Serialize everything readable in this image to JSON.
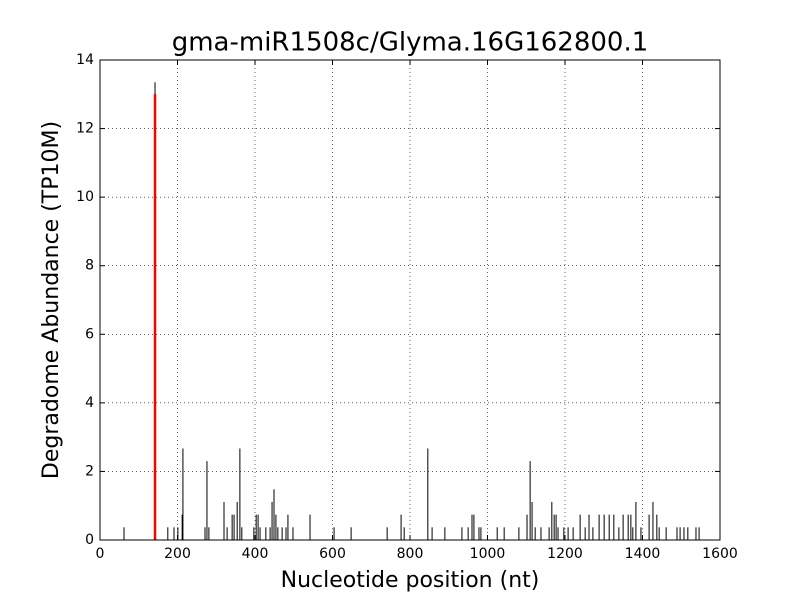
{
  "chart_data": {
    "type": "stem",
    "title": "gma-miR1508c/Glyma.16G162800.1",
    "x_label": "Nucleotide position (nt)",
    "y_label": "Degradome Abundance (TP10M)",
    "xlim": [
      0,
      1600
    ],
    "xticks": [
      0,
      200,
      400,
      600,
      800,
      1000,
      1200,
      1400,
      1600
    ],
    "ylim": [
      0,
      14
    ],
    "yticks": [
      0,
      2,
      4,
      6,
      8,
      10,
      12,
      14
    ],
    "grid": true,
    "series": [
      {
        "color": "#000000",
        "x": [
          62,
          142,
          175,
          191,
          201,
          212,
          214,
          271,
          276,
          281,
          320,
          328,
          341,
          346,
          354,
          361,
          366,
          397,
          403,
          408,
          413,
          428,
          439,
          444,
          449,
          454,
          459,
          470,
          480,
          485,
          498,
          542,
          604,
          648,
          741,
          777,
          785,
          846,
          857,
          890,
          934,
          950,
          960,
          965,
          978,
          983,
          1025,
          1043,
          1081,
          1102,
          1110,
          1115,
          1123,
          1138,
          1159,
          1166,
          1172,
          1177,
          1182,
          1197,
          1208,
          1221,
          1239,
          1252,
          1262,
          1272,
          1288,
          1301,
          1314,
          1326,
          1339,
          1350,
          1363,
          1370,
          1375,
          1383,
          1396,
          1417,
          1427,
          1437,
          1443,
          1461,
          1489,
          1497,
          1507,
          1517,
          1538,
          1546
        ],
        "values": [
          0.37,
          13.35,
          0.37,
          0.37,
          0.37,
          0.74,
          2.67,
          0.37,
          2.3,
          0.37,
          1.11,
          0.37,
          0.74,
          0.74,
          1.11,
          2.67,
          0.37,
          0.37,
          0.74,
          0.74,
          0.37,
          0.37,
          0.37,
          1.11,
          1.48,
          0.74,
          0.37,
          0.37,
          0.37,
          0.74,
          0.37,
          0.74,
          0.37,
          0.37,
          0.37,
          0.74,
          0.37,
          2.67,
          0.37,
          0.37,
          0.37,
          0.37,
          0.74,
          0.74,
          0.37,
          0.37,
          0.37,
          0.37,
          0.37,
          0.74,
          2.3,
          1.11,
          0.37,
          0.37,
          0.37,
          1.11,
          0.74,
          0.74,
          0.37,
          0.37,
          0.37,
          0.37,
          0.74,
          0.37,
          0.74,
          0.37,
          0.74,
          0.74,
          0.74,
          0.74,
          0.37,
          0.74,
          0.74,
          0.74,
          0.37,
          1.11,
          0.37,
          0.74,
          1.11,
          0.74,
          0.37,
          0.37,
          0.37,
          0.37,
          0.37,
          0.37,
          0.37,
          0.37
        ]
      },
      {
        "color": "#ff0000",
        "x": [
          142
        ],
        "values": [
          13
        ]
      }
    ]
  }
}
